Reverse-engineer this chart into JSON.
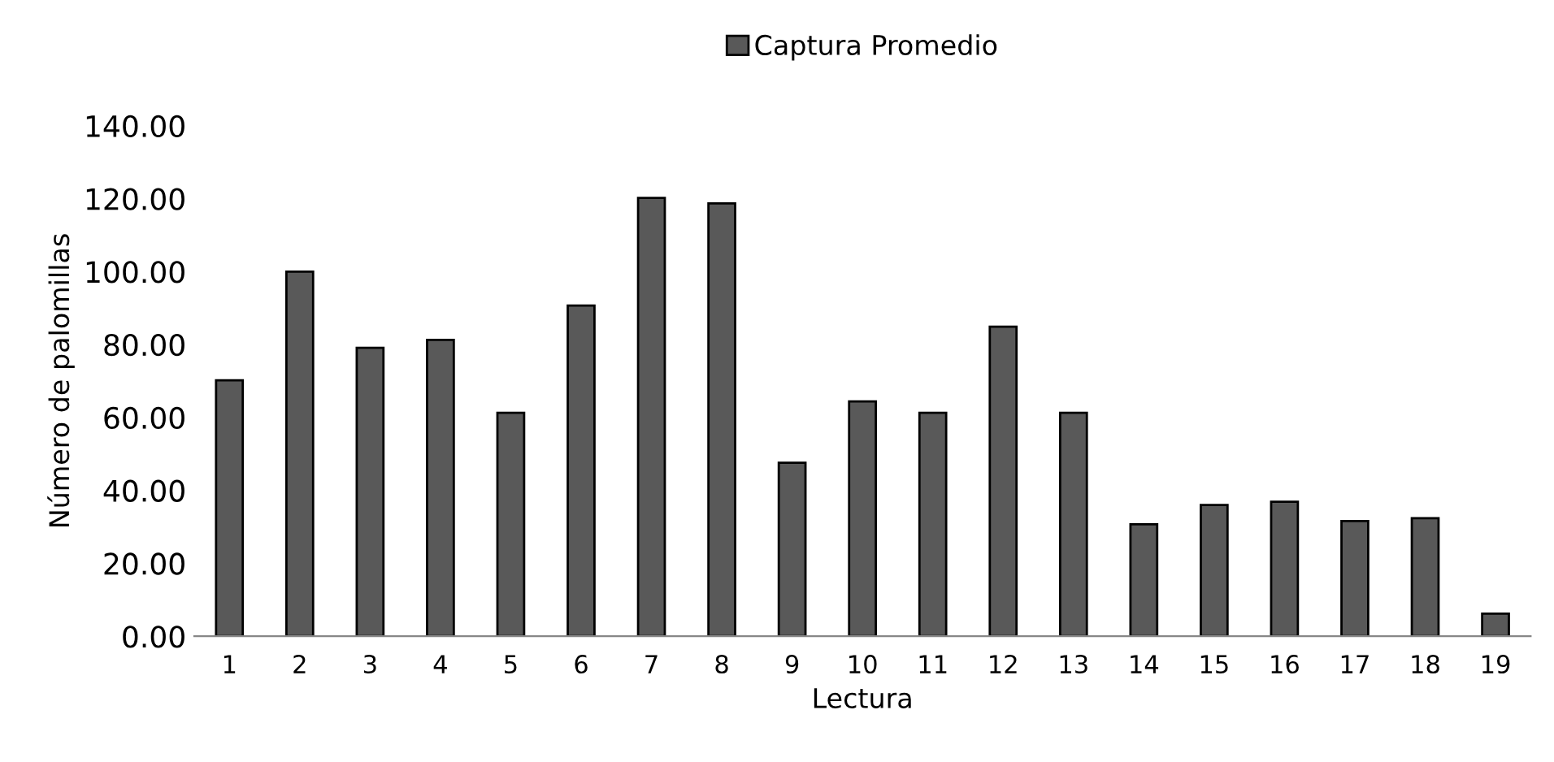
{
  "chart_data": {
    "type": "bar",
    "xlabel": "Lectura",
    "ylabel": "Número de palomillas",
    "categories": [
      "1",
      "2",
      "3",
      "4",
      "5",
      "6",
      "7",
      "8",
      "9",
      "10",
      "11",
      "12",
      "13",
      "14",
      "15",
      "16",
      "17",
      "18",
      "19"
    ],
    "series": [
      {
        "name": "Captura Promedio",
        "color": "#595959",
        "values": [
          70.2,
          100,
          79.1,
          81.3,
          61.3,
          90.7,
          120.2,
          118.7,
          47.6,
          64.4,
          61.3,
          84.9,
          61.3,
          30.7,
          36,
          36.9,
          31.6,
          32.4,
          6.2
        ]
      }
    ],
    "ylim": [
      0,
      140
    ],
    "yticks": [
      {
        "value": 0,
        "label": "0.00"
      },
      {
        "value": 20,
        "label": "20.00"
      },
      {
        "value": 40,
        "label": "40.00"
      },
      {
        "value": 60,
        "label": "60.00"
      },
      {
        "value": 80,
        "label": "80.00"
      },
      {
        "value": 100,
        "label": "100.00"
      },
      {
        "value": 120,
        "label": "120.00"
      },
      {
        "value": 140,
        "label": "140.00"
      }
    ],
    "grid": false,
    "legend": "top"
  }
}
